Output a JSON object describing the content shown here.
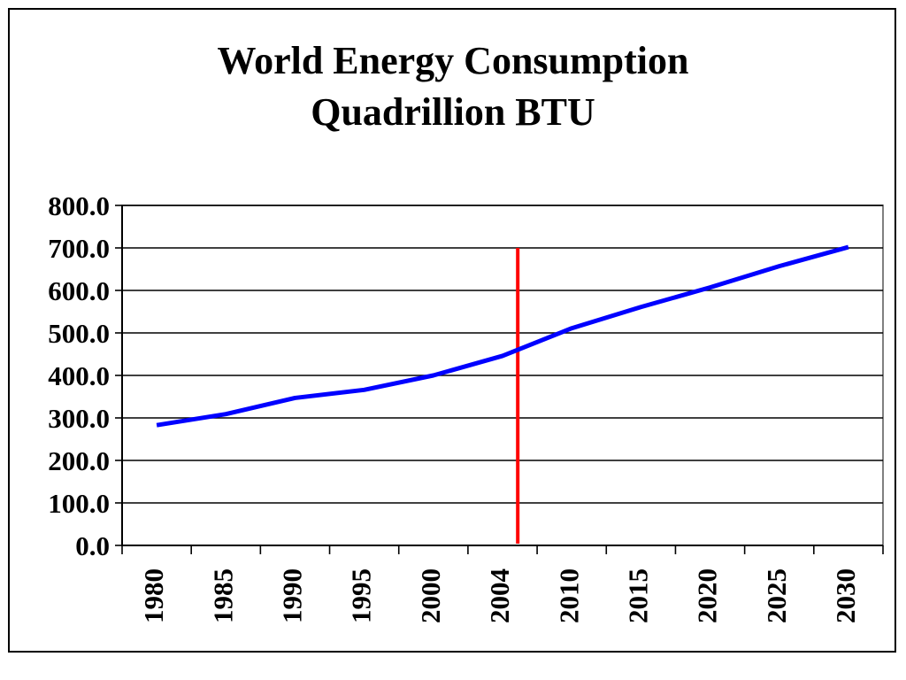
{
  "chart_data": {
    "type": "line",
    "title_line1": "World Energy Consumption",
    "title_line2": "Quadrillion BTU",
    "xlabel": "",
    "ylabel": "",
    "categories": [
      "1980",
      "1985",
      "1990",
      "1995",
      "2000",
      "2004",
      "2010",
      "2015",
      "2020",
      "2025",
      "2030"
    ],
    "y_tick_labels": [
      "0.0",
      "100.0",
      "200.0",
      "300.0",
      "400.0",
      "500.0",
      "600.0",
      "700.0",
      "800.0"
    ],
    "ylim": [
      0,
      800
    ],
    "grid": true,
    "legend": "none",
    "series": [
      {
        "color": "#0000ff",
        "values": [
          283,
          309,
          347,
          366,
          400,
          446,
          511,
          561,
          607,
          657,
          702
        ]
      }
    ],
    "vertical_marker": {
      "between_categories": [
        "2004",
        "2010"
      ],
      "fraction": 0.22,
      "y_range": [
        0,
        700
      ],
      "color": "#ff0000"
    }
  }
}
